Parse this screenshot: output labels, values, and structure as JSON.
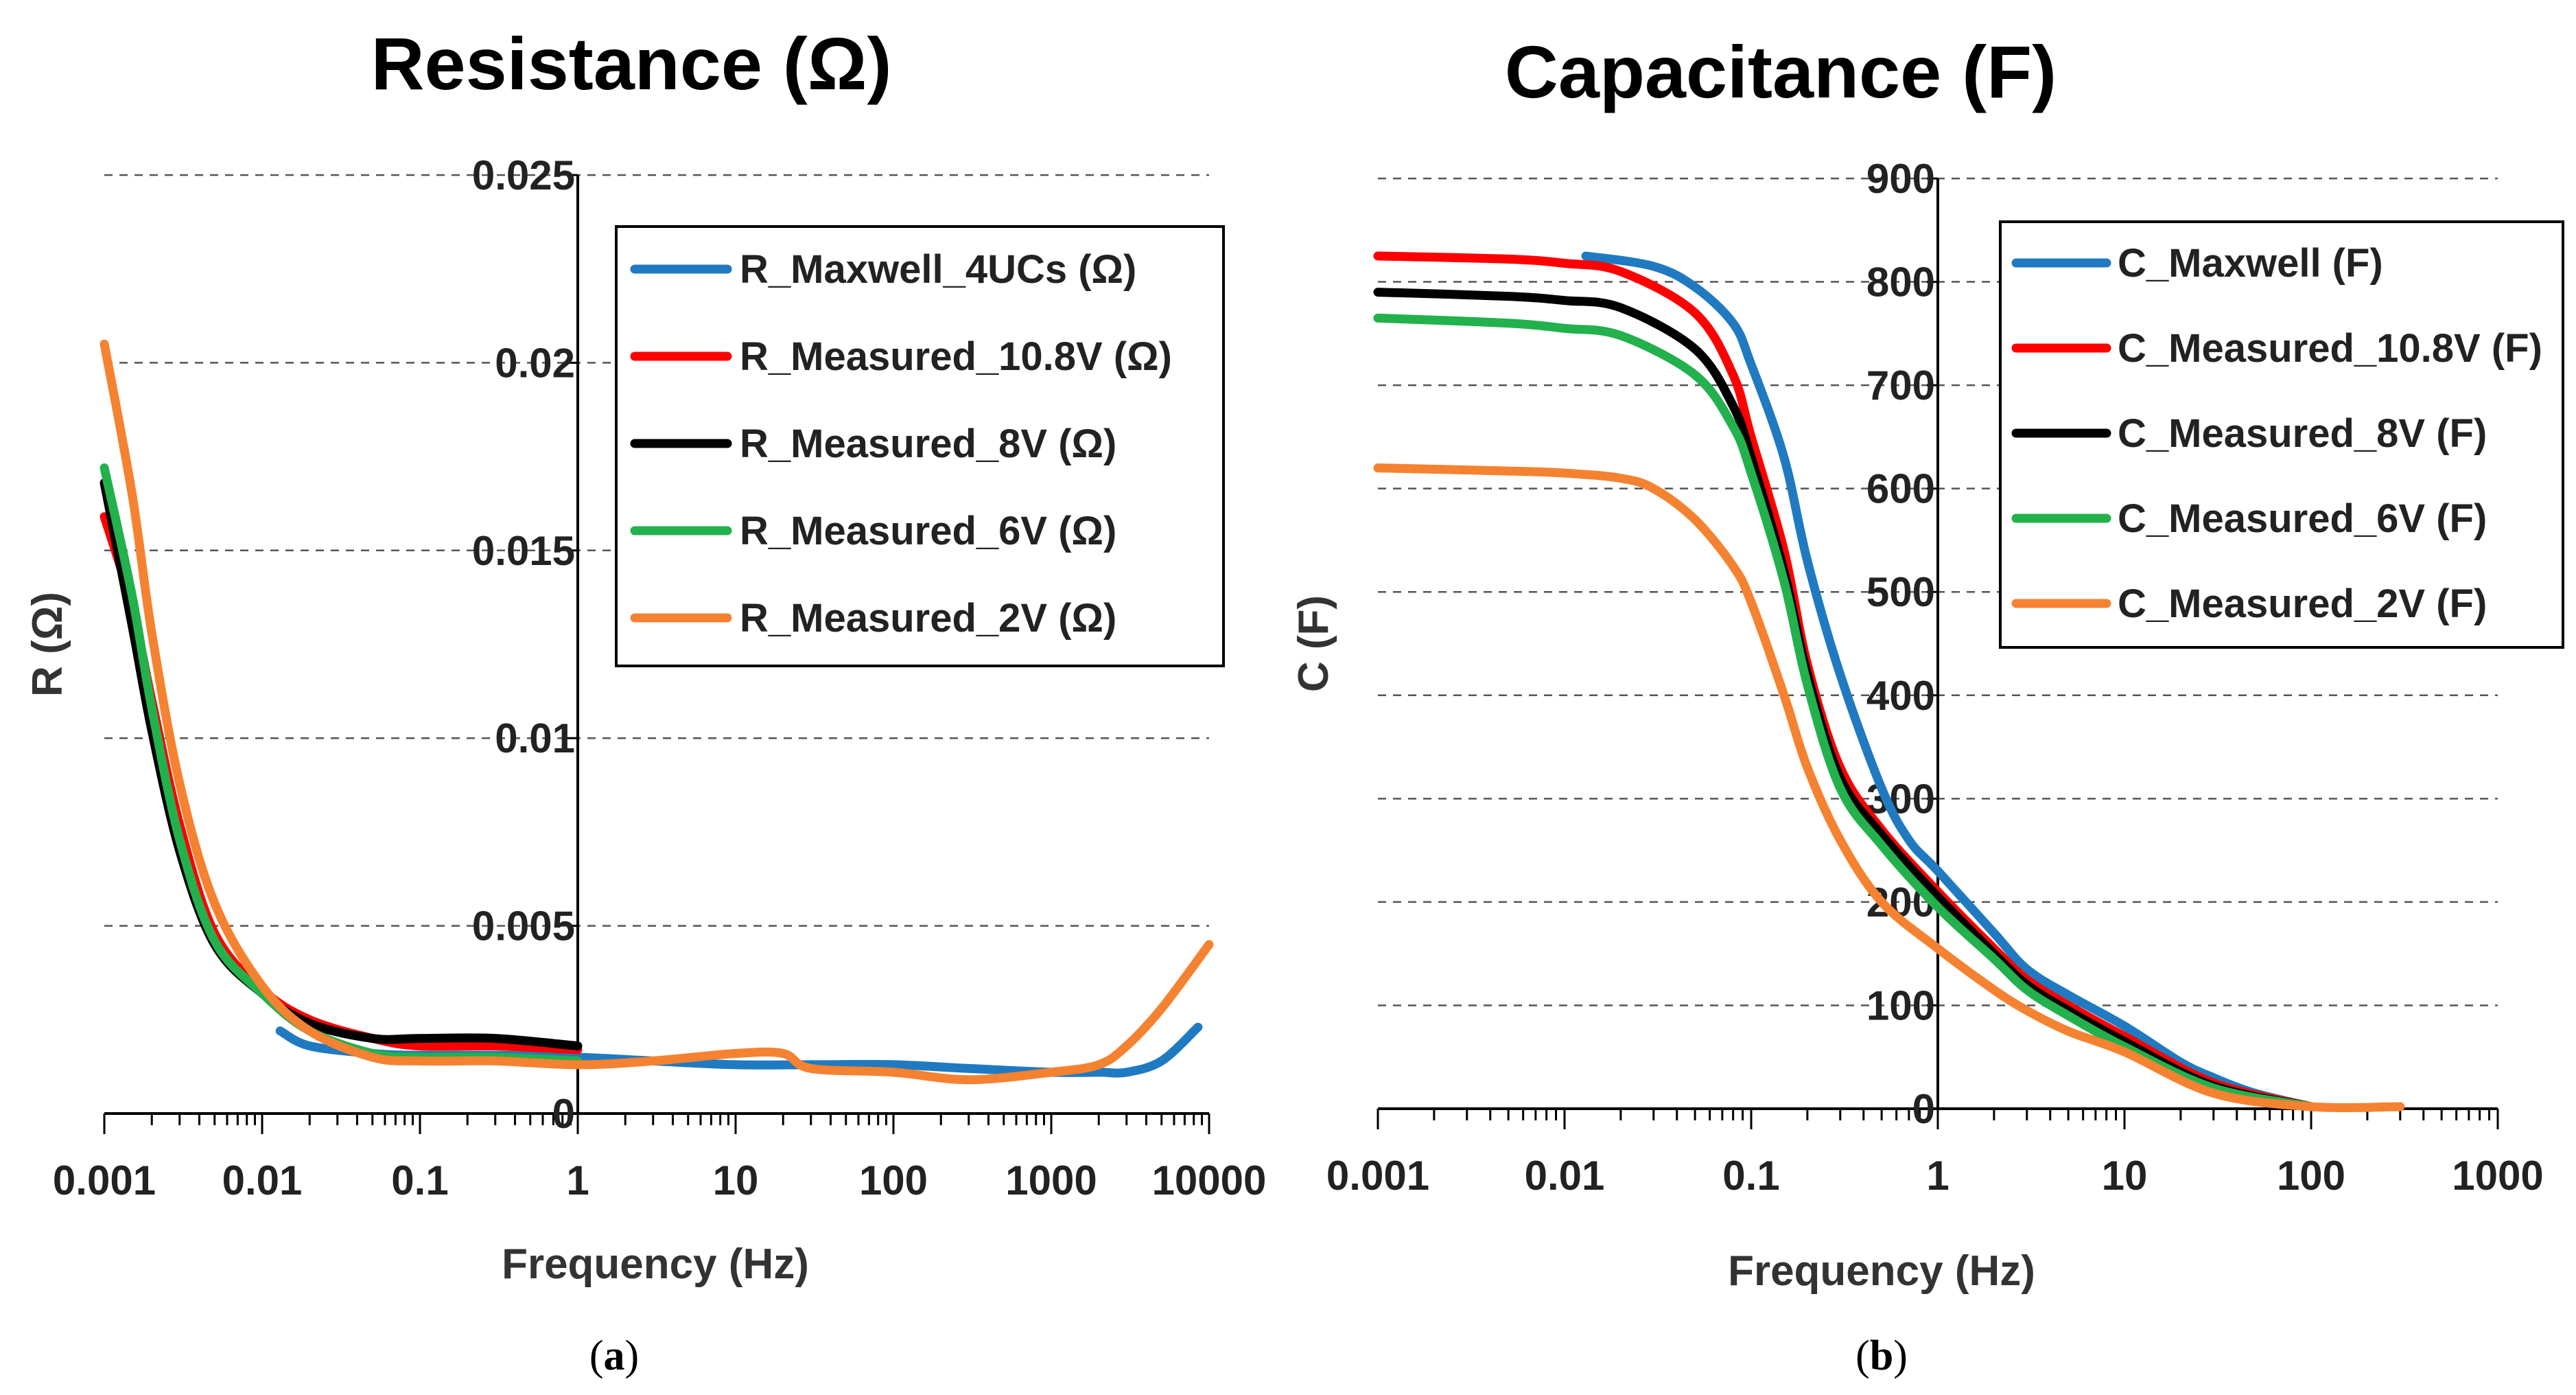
{
  "chart_data": [
    {
      "id": "a",
      "type": "line",
      "title": "Resistance (Ω)",
      "xlabel": "Frequency (Hz)",
      "ylabel": "R (Ω)",
      "xscale": "log",
      "xlim": [
        0.001,
        10000
      ],
      "ylim": [
        0,
        0.025
      ],
      "x_ticks": [
        0.001,
        0.01,
        0.1,
        1,
        10,
        100,
        1000,
        10000
      ],
      "x_tick_labels": [
        "0.001",
        "0.01",
        "0.1",
        "1",
        "10",
        "100",
        "1000",
        "10000"
      ],
      "y_ticks": [
        0,
        0.005,
        0.01,
        0.015,
        0.02,
        0.025
      ],
      "y_tick_labels": [
        "0",
        "0.005",
        "0.01",
        "0.015",
        "0.02",
        "0.025"
      ],
      "y_axis_crosses_x": 1,
      "grid": "horizontal dashed",
      "legend_position": "top-right",
      "caption": "(a)",
      "series": [
        {
          "name": "R_Maxwell_4UCs (Ω)",
          "color": "#1f7ac1",
          "x": [
            0.013,
            0.02,
            0.05,
            0.1,
            0.3,
            1,
            3,
            10,
            30,
            100,
            300,
            1000,
            2000,
            3000,
            5000,
            8500
          ],
          "y": [
            0.0022,
            0.0018,
            0.0016,
            0.00155,
            0.00155,
            0.0015,
            0.0014,
            0.0013,
            0.0013,
            0.0013,
            0.0012,
            0.0011,
            0.0011,
            0.0011,
            0.0014,
            0.0023
          ]
        },
        {
          "name": "R_Measured_10.8V (Ω)",
          "color": "#ff0000",
          "x": [
            0.001,
            0.0015,
            0.002,
            0.003,
            0.005,
            0.01,
            0.02,
            0.05,
            0.1,
            0.3,
            1
          ],
          "y": [
            0.0159,
            0.0135,
            0.011,
            0.0077,
            0.0048,
            0.0033,
            0.0025,
            0.002,
            0.0018,
            0.0018,
            0.0017
          ]
        },
        {
          "name": "R_Measured_8V (Ω)",
          "color": "#000000",
          "x": [
            0.001,
            0.0015,
            0.002,
            0.003,
            0.005,
            0.01,
            0.02,
            0.05,
            0.1,
            0.3,
            1
          ],
          "y": [
            0.0168,
            0.013,
            0.0102,
            0.007,
            0.0045,
            0.0032,
            0.0024,
            0.002,
            0.002,
            0.002,
            0.0018
          ]
        },
        {
          "name": "R_Measured_6V (Ω)",
          "color": "#22b14c",
          "x": [
            0.001,
            0.0015,
            0.002,
            0.003,
            0.005,
            0.01,
            0.02,
            0.05,
            0.1,
            0.3,
            1
          ],
          "y": [
            0.0172,
            0.0138,
            0.0108,
            0.0073,
            0.0046,
            0.0032,
            0.0022,
            0.0016,
            0.0015,
            0.0015,
            0.0014
          ]
        },
        {
          "name": "R_Measured_2V (Ω)",
          "color": "#f58231",
          "x": [
            0.001,
            0.0015,
            0.002,
            0.003,
            0.005,
            0.01,
            0.02,
            0.05,
            0.1,
            0.3,
            1,
            3,
            10,
            20,
            30,
            100,
            300,
            1000,
            2000,
            3000,
            5000,
            10000
          ],
          "y": [
            0.0205,
            0.0165,
            0.0128,
            0.0088,
            0.0056,
            0.0034,
            0.0022,
            0.0015,
            0.0014,
            0.0014,
            0.0013,
            0.0014,
            0.0016,
            0.0016,
            0.0012,
            0.0011,
            0.0009,
            0.0011,
            0.0013,
            0.0018,
            0.0028,
            0.0045
          ]
        }
      ]
    },
    {
      "id": "b",
      "type": "line",
      "title": "Capacitance (F)",
      "xlabel": "Frequency (Hz)",
      "ylabel": "C (F)",
      "xscale": "log",
      "xlim": [
        0.001,
        1000
      ],
      "ylim": [
        0,
        900
      ],
      "x_ticks": [
        0.001,
        0.01,
        0.1,
        1,
        10,
        100,
        1000
      ],
      "x_tick_labels": [
        "0.001",
        "0.01",
        "0.1",
        "1",
        "10",
        "100",
        "1000"
      ],
      "y_ticks": [
        0,
        100,
        200,
        300,
        400,
        500,
        600,
        700,
        800,
        900
      ],
      "y_tick_labels": [
        "0",
        "100",
        "200",
        "300",
        "400",
        "500",
        "600",
        "700",
        "800",
        "900"
      ],
      "y_axis_crosses_x": 1,
      "grid": "horizontal dashed",
      "legend_position": "top-right",
      "caption": "(b)",
      "series": [
        {
          "name": "C_Maxwell (F)",
          "color": "#1f7ac1",
          "x": [
            0.013,
            0.03,
            0.05,
            0.08,
            0.1,
            0.15,
            0.2,
            0.3,
            0.5,
            0.7,
            1,
            2,
            3,
            5,
            10,
            20,
            30,
            50,
            100
          ],
          "y": [
            825,
            815,
            795,
            760,
            720,
            630,
            530,
            420,
            310,
            260,
            230,
            170,
            135,
            110,
            80,
            45,
            30,
            15,
            2
          ]
        },
        {
          "name": "C_Measured_10.8V (F)",
          "color": "#ff0000",
          "x": [
            0.001,
            0.005,
            0.01,
            0.02,
            0.05,
            0.08,
            0.1,
            0.15,
            0.2,
            0.3,
            0.5,
            1,
            2,
            3,
            5,
            10,
            30,
            100
          ],
          "y": [
            825,
            822,
            818,
            810,
            770,
            710,
            650,
            540,
            430,
            330,
            270,
            210,
            155,
            125,
            100,
            70,
            25,
            2
          ]
        },
        {
          "name": "C_Measured_8V (F)",
          "color": "#000000",
          "x": [
            0.001,
            0.005,
            0.01,
            0.02,
            0.05,
            0.08,
            0.1,
            0.15,
            0.2,
            0.3,
            0.5,
            1,
            2,
            3,
            5,
            10,
            30,
            100
          ],
          "y": [
            790,
            786,
            782,
            775,
            735,
            680,
            630,
            520,
            420,
            320,
            265,
            205,
            150,
            120,
            95,
            65,
            22,
            2
          ]
        },
        {
          "name": "C_Measured_6V (F)",
          "color": "#22b14c",
          "x": [
            0.001,
            0.005,
            0.01,
            0.02,
            0.05,
            0.08,
            0.1,
            0.15,
            0.2,
            0.3,
            0.5,
            1,
            2,
            3,
            5,
            10,
            30,
            100
          ],
          "y": [
            765,
            760,
            755,
            748,
            710,
            660,
            615,
            510,
            410,
            310,
            255,
            195,
            145,
            115,
            90,
            60,
            20,
            2
          ]
        },
        {
          "name": "C_Measured_2V (F)",
          "color": "#f58231",
          "x": [
            0.001,
            0.005,
            0.01,
            0.02,
            0.03,
            0.05,
            0.08,
            0.1,
            0.15,
            0.2,
            0.3,
            0.5,
            1,
            2,
            3,
            5,
            10,
            30,
            100,
            300
          ],
          "y": [
            620,
            617,
            615,
            610,
            600,
            570,
            525,
            490,
            400,
            330,
            260,
            200,
            155,
            115,
            95,
            75,
            55,
            15,
            2,
            2
          ]
        }
      ]
    }
  ]
}
